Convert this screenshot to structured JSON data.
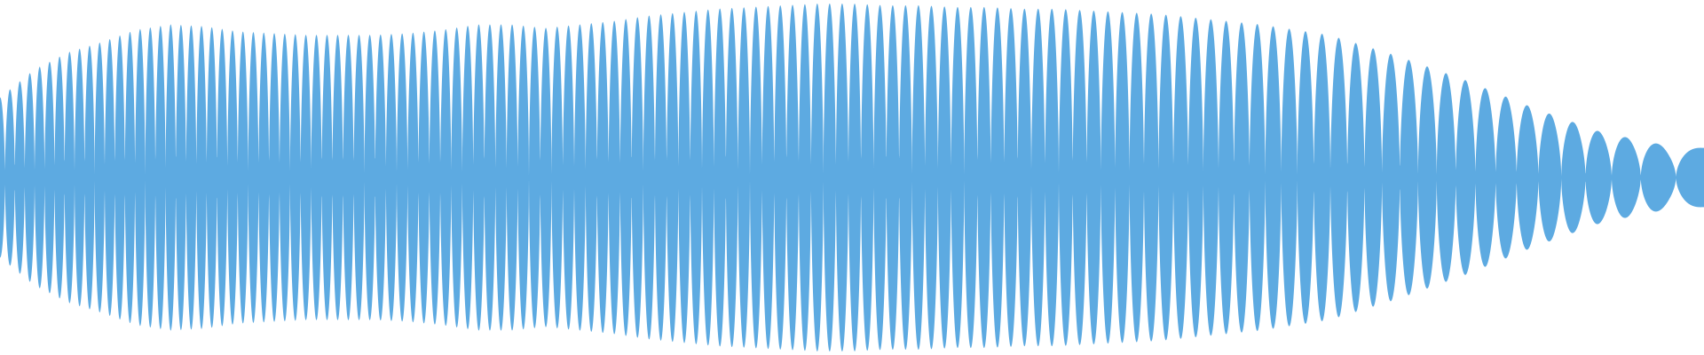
{
  "colors": {
    "background": "#ffffff",
    "waveform": "#5DAAE1"
  },
  "chart_data": {
    "type": "area",
    "x": [
      0.0,
      0.02,
      0.04,
      0.06,
      0.08,
      0.1,
      0.12,
      0.14,
      0.16,
      0.18,
      0.2,
      0.22,
      0.24,
      0.26,
      0.28,
      0.3,
      0.32,
      0.34,
      0.36,
      0.38,
      0.4,
      0.42,
      0.44,
      0.46,
      0.48,
      0.5,
      0.52,
      0.54,
      0.56,
      0.58,
      0.6,
      0.62,
      0.64,
      0.66,
      0.68,
      0.7,
      0.72,
      0.74,
      0.76,
      0.78,
      0.8,
      0.82,
      0.84,
      0.86,
      0.88,
      0.9,
      0.92,
      0.94,
      0.96,
      0.98,
      1.0
    ],
    "envelope": [
      0.46,
      0.62,
      0.72,
      0.78,
      0.85,
      0.88,
      0.87,
      0.84,
      0.83,
      0.82,
      0.82,
      0.82,
      0.83,
      0.85,
      0.88,
      0.88,
      0.86,
      0.88,
      0.9,
      0.93,
      0.95,
      0.97,
      0.98,
      0.99,
      1.0,
      1.0,
      0.99,
      0.99,
      0.98,
      0.98,
      0.97,
      0.97,
      0.96,
      0.95,
      0.94,
      0.92,
      0.9,
      0.88,
      0.85,
      0.82,
      0.76,
      0.7,
      0.63,
      0.56,
      0.48,
      0.4,
      0.33,
      0.26,
      0.22,
      0.18,
      0.17
    ],
    "carrier": {
      "cycles": 64,
      "chirp": 1.35
    },
    "ylim": [
      -1,
      1
    ],
    "grid": false,
    "legend": "none"
  }
}
